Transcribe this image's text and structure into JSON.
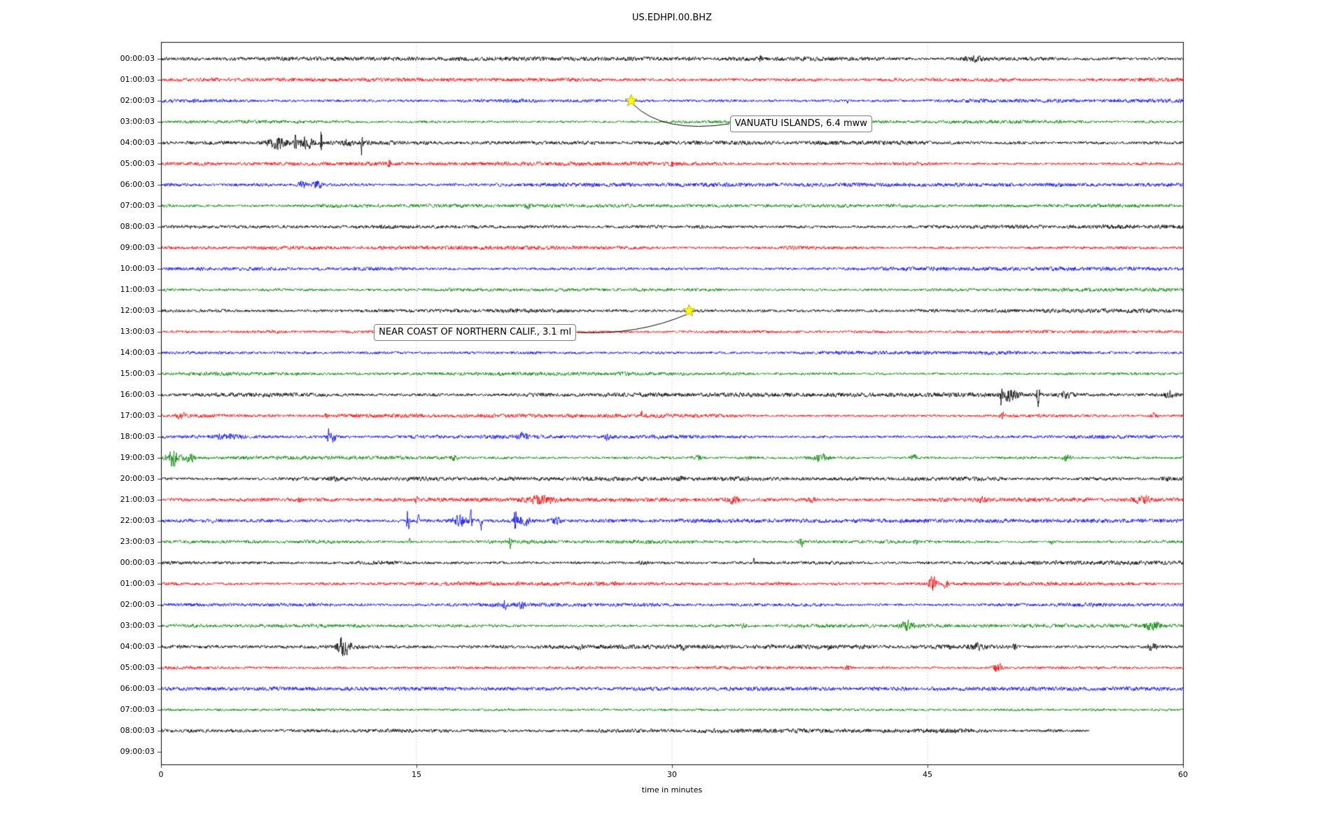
{
  "chart_data": {
    "type": "line",
    "subtype": "seismogram-dayplot",
    "title": "US.EDHPI.00.BHZ",
    "xlabel": "time in minutes",
    "xlim": [
      0,
      60
    ],
    "x_ticks": [
      0,
      15,
      30,
      45,
      60
    ],
    "x_gridlines": [
      15,
      30,
      45
    ],
    "grid": "vertical-dotted",
    "legend": "none",
    "trace_color_cycle": [
      "#000000",
      "#ff0000",
      "#0000ff",
      "#008000"
    ],
    "grid_color": "#9a9a9a",
    "star_color": "#ffff00",
    "star_edge_color": "#999900",
    "rows": [
      {
        "label": "00:00:03",
        "color": "#000000",
        "amp": 3.0,
        "duration": 60,
        "bursts": [
          [
            35.2,
            7,
            0.05
          ],
          [
            47.8,
            3,
            0.5
          ]
        ]
      },
      {
        "label": "01:00:03",
        "color": "#ff0000",
        "amp": 2.8,
        "duration": 60,
        "bursts": []
      },
      {
        "label": "02:00:03",
        "color": "#0000ff",
        "amp": 2.8,
        "duration": 60,
        "bursts": [
          [
            40.3,
            5,
            0.05
          ]
        ]
      },
      {
        "label": "03:00:03",
        "color": "#008000",
        "amp": 2.6,
        "duration": 60,
        "bursts": []
      },
      {
        "label": "04:00:03",
        "color": "#000000",
        "amp": 3.0,
        "duration": 60,
        "bursts": [
          [
            6.8,
            9,
            0.6
          ],
          [
            7.9,
            26,
            0.06
          ],
          [
            8.5,
            9,
            0.4
          ],
          [
            9.4,
            22,
            0.05
          ],
          [
            10.9,
            4,
            0.3
          ],
          [
            11.8,
            21,
            0.05
          ]
        ]
      },
      {
        "label": "05:00:03",
        "color": "#ff0000",
        "amp": 2.8,
        "duration": 60,
        "bursts": [
          [
            13.4,
            9,
            0.07
          ],
          [
            30.0,
            6,
            0.05
          ]
        ]
      },
      {
        "label": "06:00:03",
        "color": "#0000ff",
        "amp": 2.8,
        "duration": 60,
        "bursts": [
          [
            8.3,
            5,
            0.25
          ],
          [
            9.2,
            6,
            0.25
          ]
        ]
      },
      {
        "label": "07:00:03",
        "color": "#008000",
        "amp": 2.6,
        "duration": 60,
        "bursts": [
          [
            21.5,
            3,
            0.15
          ]
        ]
      },
      {
        "label": "08:00:03",
        "color": "#000000",
        "amp": 3.0,
        "duration": 60,
        "bursts": []
      },
      {
        "label": "09:00:03",
        "color": "#ff0000",
        "amp": 2.8,
        "duration": 60,
        "bursts": []
      },
      {
        "label": "10:00:03",
        "color": "#0000ff",
        "amp": 2.8,
        "duration": 60,
        "bursts": []
      },
      {
        "label": "11:00:03",
        "color": "#008000",
        "amp": 2.6,
        "duration": 60,
        "bursts": []
      },
      {
        "label": "12:00:03",
        "color": "#000000",
        "amp": 3.0,
        "duration": 60,
        "bursts": []
      },
      {
        "label": "13:00:03",
        "color": "#ff0000",
        "amp": 2.8,
        "duration": 60,
        "bursts": []
      },
      {
        "label": "14:00:03",
        "color": "#0000ff",
        "amp": 2.8,
        "duration": 60,
        "bursts": []
      },
      {
        "label": "15:00:03",
        "color": "#008000",
        "amp": 2.6,
        "duration": 60,
        "bursts": []
      },
      {
        "label": "16:00:03",
        "color": "#000000",
        "amp": 3.0,
        "duration": 60,
        "bursts": [
          [
            49.3,
            23,
            0.07
          ],
          [
            49.8,
            8,
            0.5
          ],
          [
            51.5,
            17,
            0.09
          ],
          [
            53.2,
            4,
            0.4
          ],
          [
            59.2,
            4,
            0.3
          ]
        ]
      },
      {
        "label": "17:00:03",
        "color": "#ff0000",
        "amp": 2.8,
        "duration": 60,
        "bursts": [
          [
            1.2,
            5,
            0.3
          ],
          [
            9.7,
            5,
            0.05
          ],
          [
            28.2,
            7,
            0.05
          ],
          [
            49.4,
            6,
            0.15
          ],
          [
            58.3,
            4,
            0.2
          ]
        ]
      },
      {
        "label": "18:00:03",
        "color": "#0000ff",
        "amp": 2.8,
        "duration": 60,
        "bursts": [
          [
            3.9,
            4,
            0.8
          ],
          [
            9.8,
            24,
            0.06
          ],
          [
            10.1,
            9,
            0.15
          ],
          [
            21.3,
            5,
            0.3
          ],
          [
            26.2,
            4,
            0.1
          ],
          [
            53.7,
            7,
            0.05
          ]
        ]
      },
      {
        "label": "19:00:03",
        "color": "#008000",
        "amp": 2.6,
        "duration": 60,
        "bursts": [
          [
            0.7,
            12,
            0.4
          ],
          [
            1.7,
            7,
            0.3
          ],
          [
            17.2,
            4,
            0.2
          ],
          [
            31.5,
            4,
            0.3
          ],
          [
            38.7,
            6,
            0.5
          ],
          [
            44.2,
            4,
            0.2
          ],
          [
            53.2,
            6,
            0.2
          ]
        ]
      },
      {
        "label": "20:00:03",
        "color": "#000000",
        "amp": 3.0,
        "duration": 60,
        "bursts": [
          [
            10.2,
            3,
            0.3
          ],
          [
            30.5,
            3,
            0.2
          ],
          [
            59.0,
            3,
            0.25
          ]
        ]
      },
      {
        "label": "21:00:03",
        "color": "#ff0000",
        "amp": 2.8,
        "duration": 60,
        "bursts": [
          [
            8.1,
            5,
            0.1
          ],
          [
            15.0,
            6,
            0.07
          ],
          [
            22.3,
            6,
            0.8
          ],
          [
            33.6,
            6,
            0.25
          ],
          [
            38.2,
            4,
            0.2
          ],
          [
            48.2,
            3,
            0.3
          ],
          [
            57.6,
            5,
            0.5
          ]
        ]
      },
      {
        "label": "22:00:03",
        "color": "#0000ff",
        "amp": 2.8,
        "duration": 60,
        "bursts": [
          [
            14.5,
            15,
            0.09
          ],
          [
            15.1,
            11,
            0.07
          ],
          [
            17.6,
            7,
            0.5
          ],
          [
            18.2,
            19,
            0.05
          ],
          [
            18.8,
            17,
            0.05
          ],
          [
            20.8,
            21,
            0.09
          ],
          [
            21.3,
            9,
            0.3
          ],
          [
            23.2,
            5,
            0.3
          ]
        ]
      },
      {
        "label": "23:00:03",
        "color": "#008000",
        "amp": 2.6,
        "duration": 60,
        "bursts": [
          [
            14.6,
            5,
            0.05
          ],
          [
            20.5,
            11,
            0.06
          ],
          [
            37.6,
            9,
            0.09
          ],
          [
            44.3,
            4,
            0.1
          ],
          [
            52.3,
            4,
            0.1
          ]
        ]
      },
      {
        "label": "00:00:03",
        "color": "#000000",
        "amp": 3.0,
        "duration": 60,
        "bursts": [
          [
            28.3,
            4,
            0.2
          ],
          [
            34.8,
            6,
            0.05
          ]
        ]
      },
      {
        "label": "01:00:03",
        "color": "#ff0000",
        "amp": 2.8,
        "duration": 60,
        "bursts": [
          [
            26.6,
            4,
            0.1
          ],
          [
            45.3,
            11,
            0.25
          ],
          [
            46.1,
            7,
            0.15
          ]
        ]
      },
      {
        "label": "02:00:03",
        "color": "#0000ff",
        "amp": 2.8,
        "duration": 60,
        "bursts": [
          [
            20.2,
            8,
            0.15
          ],
          [
            21.2,
            7,
            0.12
          ]
        ]
      },
      {
        "label": "03:00:03",
        "color": "#008000",
        "amp": 2.6,
        "duration": 60,
        "bursts": [
          [
            34.2,
            3,
            0.2
          ],
          [
            43.8,
            7,
            0.35
          ],
          [
            58.2,
            7,
            0.4
          ]
        ]
      },
      {
        "label": "04:00:03",
        "color": "#000000",
        "amp": 3.0,
        "duration": 60,
        "bursts": [
          [
            10.6,
            15,
            0.25
          ],
          [
            11.0,
            10,
            0.2
          ],
          [
            24.6,
            3,
            0.2
          ],
          [
            30.6,
            5,
            0.1
          ],
          [
            39.2,
            4,
            0.15
          ],
          [
            47.8,
            6,
            0.3
          ],
          [
            50.1,
            5,
            0.1
          ],
          [
            58.2,
            5,
            0.3
          ]
        ]
      },
      {
        "label": "05:00:03",
        "color": "#ff0000",
        "amp": 2.8,
        "duration": 60,
        "bursts": [
          [
            40.3,
            3,
            0.2
          ],
          [
            49.1,
            7,
            0.3
          ]
        ]
      },
      {
        "label": "06:00:03",
        "color": "#0000ff",
        "amp": 2.8,
        "duration": 60,
        "bursts": []
      },
      {
        "label": "07:00:03",
        "color": "#008000",
        "amp": 2.6,
        "duration": 60,
        "bursts": []
      },
      {
        "label": "08:00:03",
        "color": "#000000",
        "amp": 3.0,
        "duration": 54.5,
        "bursts": []
      },
      {
        "label": "09:00:03",
        "color": "#ff0000",
        "amp": 0,
        "duration": 0,
        "bursts": []
      }
    ],
    "events": [
      {
        "label": "VANUATU ISLANDS, 6.4 mww",
        "row_index": 2,
        "minute": 27.6,
        "box_minute": 33.4,
        "box_dy": 34,
        "attach": "left"
      },
      {
        "label": "NEAR COAST OF NORTHERN CALIF., 3.1 ml",
        "row_index": 12,
        "minute": 31.0,
        "box_minute": 12.5,
        "box_dy": 32,
        "attach": "right"
      }
    ]
  }
}
